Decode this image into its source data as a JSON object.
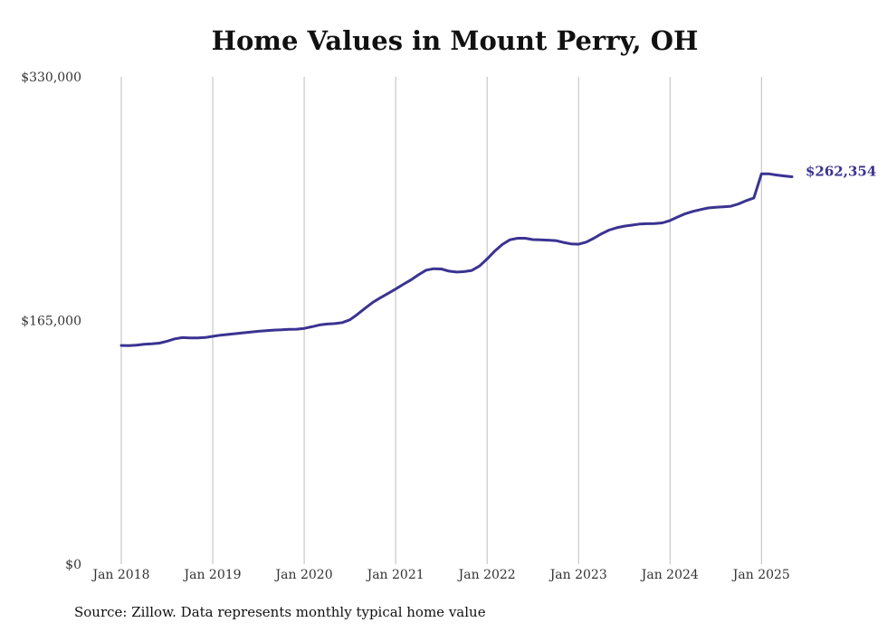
{
  "chart_data": {
    "type": "line",
    "title": "Home Values in Mount Perry, OH",
    "source": "Source: Zillow. Data represents monthly typical home value",
    "series": [
      {
        "color": "#3b3391",
        "end_label": "$262,354",
        "points": [
          [
            "2018-01",
            148100
          ],
          [
            "2018-02",
            148000
          ],
          [
            "2018-03",
            148300
          ],
          [
            "2018-04",
            148900
          ],
          [
            "2018-05",
            149200
          ],
          [
            "2018-06",
            149700
          ],
          [
            "2018-07",
            151000
          ],
          [
            "2018-08",
            152600
          ],
          [
            "2018-09",
            153400
          ],
          [
            "2018-10",
            153200
          ],
          [
            "2018-11",
            153200
          ],
          [
            "2018-12",
            153500
          ],
          [
            "2019-01",
            154300
          ],
          [
            "2019-02",
            155100
          ],
          [
            "2019-03",
            155600
          ],
          [
            "2019-04",
            156100
          ],
          [
            "2019-05",
            156700
          ],
          [
            "2019-06",
            157200
          ],
          [
            "2019-07",
            157700
          ],
          [
            "2019-08",
            158100
          ],
          [
            "2019-09",
            158500
          ],
          [
            "2019-10",
            158700
          ],
          [
            "2019-11",
            159000
          ],
          [
            "2019-12",
            159100
          ],
          [
            "2020-01",
            159700
          ],
          [
            "2020-02",
            160800
          ],
          [
            "2020-03",
            162000
          ],
          [
            "2020-04",
            162600
          ],
          [
            "2020-05",
            162900
          ],
          [
            "2020-06",
            163600
          ],
          [
            "2020-07",
            165500
          ],
          [
            "2020-08",
            169200
          ],
          [
            "2020-09",
            173400
          ],
          [
            "2020-10",
            177300
          ],
          [
            "2020-11",
            180400
          ],
          [
            "2020-12",
            183300
          ],
          [
            "2021-01",
            186300
          ],
          [
            "2021-02",
            189500
          ],
          [
            "2021-03",
            192500
          ],
          [
            "2021-04",
            196000
          ],
          [
            "2021-05",
            199100
          ],
          [
            "2021-06",
            200100
          ],
          [
            "2021-07",
            199900
          ],
          [
            "2021-08",
            198400
          ],
          [
            "2021-09",
            197800
          ],
          [
            "2021-10",
            198100
          ],
          [
            "2021-11",
            198900
          ],
          [
            "2021-12",
            201900
          ],
          [
            "2022-01",
            206700
          ],
          [
            "2022-02",
            212000
          ],
          [
            "2022-03",
            216500
          ],
          [
            "2022-04",
            219700
          ],
          [
            "2022-05",
            220700
          ],
          [
            "2022-06",
            220700
          ],
          [
            "2022-07",
            219800
          ],
          [
            "2022-08",
            219600
          ],
          [
            "2022-09",
            219400
          ],
          [
            "2022-10",
            219100
          ],
          [
            "2022-11",
            217900
          ],
          [
            "2022-12",
            216900
          ],
          [
            "2023-01",
            216700
          ],
          [
            "2023-02",
            218100
          ],
          [
            "2023-03",
            220700
          ],
          [
            "2023-04",
            223700
          ],
          [
            "2023-05",
            226200
          ],
          [
            "2023-06",
            227800
          ],
          [
            "2023-07",
            228900
          ],
          [
            "2023-08",
            229600
          ],
          [
            "2023-09",
            230300
          ],
          [
            "2023-10",
            230600
          ],
          [
            "2023-11",
            230700
          ],
          [
            "2023-12",
            231100
          ],
          [
            "2024-01",
            232700
          ],
          [
            "2024-02",
            235100
          ],
          [
            "2024-03",
            237300
          ],
          [
            "2024-04",
            238900
          ],
          [
            "2024-05",
            240100
          ],
          [
            "2024-06",
            241200
          ],
          [
            "2024-07",
            241700
          ],
          [
            "2024-08",
            242000
          ],
          [
            "2024-09",
            242400
          ],
          [
            "2024-10",
            244000
          ],
          [
            "2024-11",
            246200
          ],
          [
            "2024-12",
            248000
          ],
          [
            "2025-01",
            264300
          ],
          [
            "2025-02",
            264300
          ],
          [
            "2025-03",
            263500
          ],
          [
            "2025-04",
            262900
          ],
          [
            "2025-05",
            262354
          ]
        ]
      }
    ],
    "x_ticks": [
      {
        "date": "2018-01",
        "label": "Jan 2018"
      },
      {
        "date": "2019-01",
        "label": "Jan 2019"
      },
      {
        "date": "2020-01",
        "label": "Jan 2020"
      },
      {
        "date": "2021-01",
        "label": "Jan 2021"
      },
      {
        "date": "2022-01",
        "label": "Jan 2022"
      },
      {
        "date": "2023-01",
        "label": "Jan 2023"
      },
      {
        "date": "2024-01",
        "label": "Jan 2024"
      },
      {
        "date": "2025-01",
        "label": "Jan 2025"
      }
    ],
    "y_ticks": [
      {
        "value": 0,
        "label": "$0"
      },
      {
        "value": 165000,
        "label": "$165,000"
      },
      {
        "value": 330000,
        "label": "$330,000"
      }
    ],
    "ylim": [
      0,
      330000
    ],
    "grid": "vertical",
    "xlabel": "",
    "ylabel": ""
  }
}
